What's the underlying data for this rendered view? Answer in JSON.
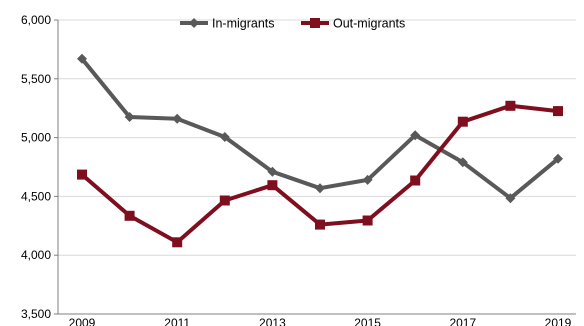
{
  "chart_data": {
    "type": "line",
    "x": [
      2009,
      2010,
      2011,
      2012,
      2013,
      2014,
      2015,
      2016,
      2017,
      2018,
      2019
    ],
    "x_tick_labels": [
      "2009",
      "2011",
      "2013",
      "2015",
      "2017",
      "2019"
    ],
    "y_tick_labels": [
      "3,500",
      "4,000",
      "4,500",
      "5,000",
      "5,500",
      "6,000"
    ],
    "ylim": [
      3500,
      6000
    ],
    "y_ticks": [
      3500,
      4000,
      4500,
      5000,
      5500,
      6000
    ],
    "grid": true,
    "legend_position": "top-center",
    "series": [
      {
        "name": "In-migrants",
        "color": "#595959",
        "marker": "diamond",
        "values": [
          5670,
          5175,
          5160,
          5005,
          4710,
          4570,
          4640,
          5020,
          4790,
          4485,
          4820
        ]
      },
      {
        "name": "Out-migrants",
        "color": "#7f0f1f",
        "marker": "square",
        "values": [
          4685,
          4335,
          4110,
          4465,
          4595,
          4260,
          4295,
          4635,
          5135,
          5270,
          5225
        ]
      }
    ]
  }
}
